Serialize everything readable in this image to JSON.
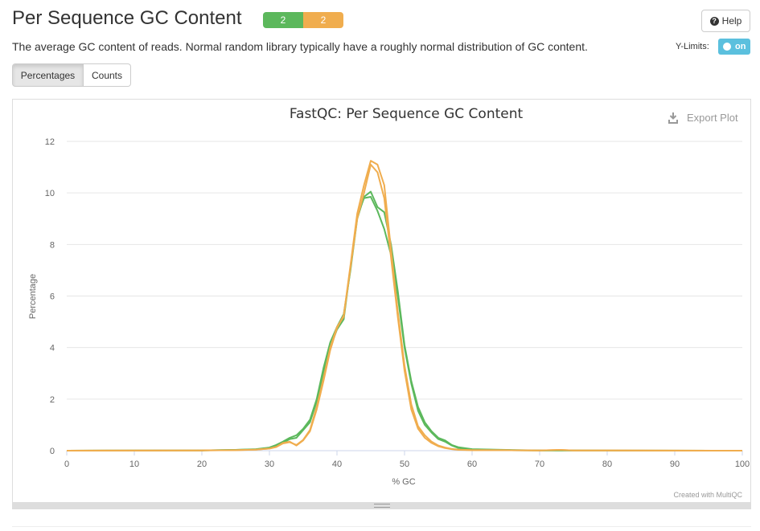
{
  "header": {
    "title": "Per Sequence GC Content",
    "badges": [
      {
        "label": "2",
        "status": "pass",
        "color": "#5cb85c"
      },
      {
        "label": "2",
        "status": "warn",
        "color": "#f0ad4e"
      }
    ],
    "help_label": "Help",
    "help_icon": "question-circle-icon"
  },
  "description": "The average GC content of reads. Normal random library typically have a roughly normal distribution of GC content.",
  "controls": {
    "ylimits_label": "Y-Limits:",
    "ylimits_toggle": "on",
    "buttons": [
      {
        "label": "Percentages",
        "active": true
      },
      {
        "label": "Counts",
        "active": false
      }
    ]
  },
  "plot": {
    "export_label": "Export Plot",
    "export_icon": "download-icon",
    "credit": "Created with MultiQC"
  },
  "chart_data": {
    "type": "line",
    "title": "FastQC: Per Sequence GC Content",
    "xlabel": "% GC",
    "ylabel": "Percentage",
    "xlim": [
      0,
      100
    ],
    "ylim": [
      0,
      12
    ],
    "xticks": [
      0,
      10,
      20,
      30,
      40,
      50,
      60,
      70,
      80,
      90,
      100
    ],
    "yticks": [
      0,
      2,
      4,
      6,
      8,
      10,
      12
    ],
    "grid": true,
    "legend": "none",
    "series": [
      {
        "color": "#5cb85c",
        "x": [
          0,
          20,
          25,
          28,
          30,
          31,
          32,
          33,
          34,
          35,
          36,
          37,
          38,
          39,
          40,
          41,
          42,
          43,
          44,
          45,
          46,
          47,
          48,
          49,
          50,
          51,
          52,
          53,
          54,
          55,
          56,
          57,
          58,
          60,
          65,
          70,
          75,
          100
        ],
        "y": [
          0,
          0.01,
          0.03,
          0.06,
          0.12,
          0.22,
          0.35,
          0.5,
          0.6,
          0.85,
          1.2,
          2.0,
          3.2,
          4.2,
          4.8,
          5.3,
          7.0,
          9.0,
          9.85,
          10.05,
          9.45,
          9.25,
          8.0,
          6.2,
          4.1,
          2.7,
          1.7,
          1.1,
          0.75,
          0.5,
          0.4,
          0.22,
          0.13,
          0.06,
          0.03,
          0.01,
          0.005,
          0
        ]
      },
      {
        "color": "#5cb85c",
        "x": [
          0,
          20,
          25,
          28,
          30,
          31,
          32,
          33,
          34,
          35,
          36,
          37,
          38,
          39,
          40,
          41,
          42,
          43,
          44,
          45,
          46,
          47,
          48,
          49,
          50,
          51,
          52,
          53,
          54,
          55,
          56,
          57,
          58,
          60,
          65,
          70,
          75,
          100
        ],
        "y": [
          0,
          0.01,
          0.03,
          0.05,
          0.1,
          0.2,
          0.3,
          0.45,
          0.5,
          0.8,
          1.1,
          1.9,
          3.0,
          4.0,
          4.7,
          5.1,
          7.1,
          9.1,
          9.8,
          9.85,
          9.3,
          8.6,
          7.6,
          6.0,
          4.0,
          2.6,
          1.55,
          1.0,
          0.7,
          0.45,
          0.35,
          0.2,
          0.1,
          0.05,
          0.02,
          0.01,
          0.005,
          0
        ]
      },
      {
        "color": "#f0ad4e",
        "x": [
          0,
          20,
          25,
          28,
          30,
          31,
          32,
          33,
          34,
          35,
          36,
          37,
          38,
          39,
          40,
          41,
          42,
          43,
          44,
          45,
          46,
          47,
          48,
          49,
          50,
          51,
          52,
          53,
          54,
          55,
          56,
          57,
          58,
          60,
          65,
          70,
          73,
          75,
          100
        ],
        "y": [
          0,
          0.01,
          0.02,
          0.04,
          0.08,
          0.15,
          0.3,
          0.35,
          0.2,
          0.4,
          0.75,
          1.6,
          2.7,
          3.9,
          4.75,
          5.25,
          7.2,
          9.2,
          10.3,
          11.25,
          11.1,
          10.3,
          7.8,
          5.4,
          3.3,
          1.8,
          0.95,
          0.6,
          0.35,
          0.2,
          0.12,
          0.07,
          0.04,
          0.02,
          0.02,
          0.01,
          0.03,
          0.01,
          0
        ]
      },
      {
        "color": "#f0ad4e",
        "x": [
          0,
          20,
          25,
          28,
          30,
          31,
          32,
          33,
          34,
          35,
          36,
          37,
          38,
          39,
          40,
          41,
          42,
          43,
          44,
          45,
          46,
          47,
          48,
          49,
          50,
          51,
          52,
          53,
          54,
          55,
          56,
          57,
          58,
          60,
          65,
          70,
          73,
          75,
          100
        ],
        "y": [
          0,
          0.01,
          0.02,
          0.04,
          0.08,
          0.14,
          0.28,
          0.33,
          0.22,
          0.42,
          0.8,
          1.7,
          2.8,
          4.0,
          4.8,
          5.2,
          7.1,
          9.0,
          10.0,
          11.1,
          10.8,
          9.8,
          7.5,
          5.2,
          3.1,
          1.6,
          0.85,
          0.5,
          0.3,
          0.17,
          0.1,
          0.06,
          0.03,
          0.02,
          0.02,
          0.01,
          0.03,
          0.01,
          0
        ]
      }
    ]
  }
}
